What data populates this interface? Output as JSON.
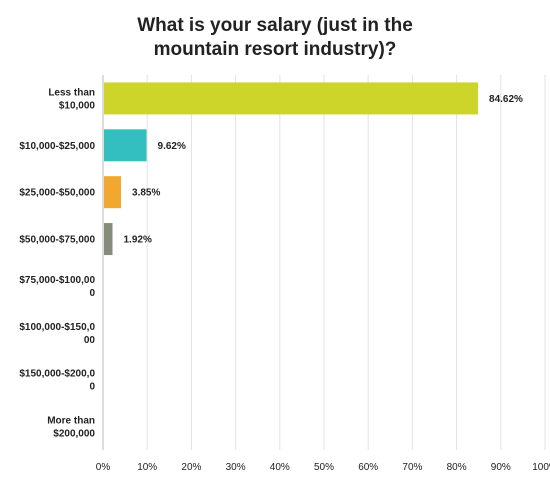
{
  "chart_data": {
    "type": "bar",
    "orientation": "horizontal",
    "title_lines": [
      "What is your salary (just in the",
      "mountain resort industry)?"
    ],
    "categories": [
      [
        "Less than",
        "$10,000"
      ],
      [
        "$10,000-$25,000"
      ],
      [
        "$25,000-$50,000"
      ],
      [
        "$50,000-$75,000"
      ],
      [
        "$75,000-$100,00",
        "0"
      ],
      [
        "$100,000-$150,0",
        "00"
      ],
      [
        "$150,000-$200,0",
        "0"
      ],
      [
        "More than",
        "$200,000"
      ]
    ],
    "values": [
      84.62,
      9.62,
      3.85,
      1.92,
      0,
      0,
      0,
      0
    ],
    "data_labels": [
      "84.62%",
      "9.62%",
      "3.85%",
      "1.92%",
      "",
      "",
      "",
      ""
    ],
    "colors": [
      "#cdd42a",
      "#33bfbf",
      "#f0a830",
      "#868b7b",
      "#cdd42a",
      "#33bfbf",
      "#f0a830",
      "#868b7b"
    ],
    "xlim": [
      0,
      100
    ],
    "xticks": [
      "0%",
      "10%",
      "20%",
      "30%",
      "40%",
      "50%",
      "60%",
      "70%",
      "80%",
      "90%",
      "100%"
    ],
    "grid": true,
    "legend": "none"
  }
}
